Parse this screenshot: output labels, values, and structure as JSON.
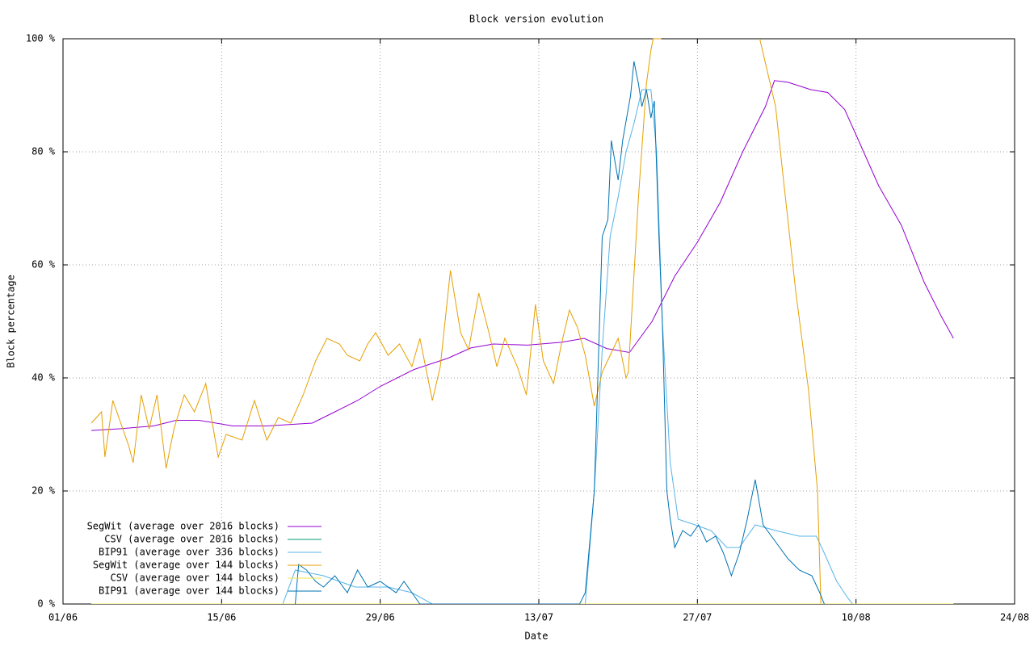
{
  "chart_data": {
    "type": "line",
    "title": "Block version evolution",
    "x_label": "Date",
    "y_label": "Block percentage",
    "xlim": [
      0,
      84
    ],
    "xticks": [
      {
        "value": 0,
        "label": "01/06"
      },
      {
        "value": 14,
        "label": "15/06"
      },
      {
        "value": 28,
        "label": "29/06"
      },
      {
        "value": 42,
        "label": "13/07"
      },
      {
        "value": 56,
        "label": "27/07"
      },
      {
        "value": 70,
        "label": "10/08"
      },
      {
        "value": 84,
        "label": "24/08"
      }
    ],
    "ylim": [
      0,
      100
    ],
    "yticks": [
      {
        "value": 0,
        "label": "0 %"
      },
      {
        "value": 20,
        "label": "20 %"
      },
      {
        "value": 40,
        "label": "40 %"
      },
      {
        "value": 60,
        "label": "60 %"
      },
      {
        "value": 80,
        "label": "80 %"
      },
      {
        "value": 100,
        "label": "100 %"
      }
    ],
    "grid": true,
    "legend": "lower left",
    "series": [
      {
        "name": "SegWit (average over 2016 blocks)",
        "color": "#9400d3",
        "x": [
          2.5,
          5,
          8,
          10,
          12,
          15,
          18,
          22,
          24,
          26,
          28,
          31,
          34,
          36,
          38,
          41,
          44,
          46,
          48,
          50,
          52,
          54,
          56,
          58,
          60,
          62,
          62.8,
          64,
          66,
          67.5,
          69,
          70,
          72,
          74,
          76,
          77.5,
          78.6
        ],
        "values": [
          30.7,
          31,
          31.5,
          32.5,
          32.5,
          31.5,
          31.5,
          32,
          34,
          36,
          38.5,
          41.5,
          43.5,
          45.3,
          46,
          45.8,
          46.3,
          47,
          45.2,
          44.5,
          50,
          58,
          64,
          71,
          80,
          88,
          92.6,
          92.3,
          91,
          90.5,
          87.5,
          83,
          74,
          67,
          57,
          51,
          47
        ]
      },
      {
        "name": "CSV (average over 2016 blocks)",
        "color": "#009e73",
        "x": [
          2.5,
          78.6
        ],
        "values": [
          0,
          0
        ]
      },
      {
        "name": "BIP91 (average over 336 blocks)",
        "color": "#56b4e9",
        "x": [
          19.4,
          20.5,
          23,
          25.8,
          28.7,
          30.8,
          32.6,
          46.1,
          46.9,
          47.6,
          48.3,
          49,
          49.7,
          50.4,
          51.1,
          51.9,
          52.4,
          52.9,
          53.6,
          54.3,
          55.8,
          57.2,
          58.6,
          59.7,
          61.1,
          62.9,
          65,
          66.5,
          67.2,
          68.3,
          69.3,
          69.7
        ],
        "values": [
          0,
          6,
          5,
          3,
          3,
          2,
          0,
          0,
          20,
          45,
          65,
          72,
          80,
          85,
          91,
          91,
          80,
          50,
          25,
          15,
          14,
          13,
          10,
          10,
          14,
          13,
          12,
          12,
          9,
          4,
          1,
          0
        ]
      },
      {
        "name": "SegWit (average over 144 blocks)",
        "color": "#e69f00",
        "x": [
          2.5,
          3.4,
          3.7,
          4.4,
          5.1,
          5.8,
          6.2,
          6.9,
          7.6,
          8.3,
          9.1,
          9.8,
          10.7,
          11.6,
          12.6,
          13.1,
          13.7,
          14.4,
          15.8,
          16.9,
          18,
          19,
          20.1,
          21.2,
          22.3,
          23.3,
          24.4,
          25.1,
          26.2,
          26.9,
          27.6,
          28.7,
          29.7,
          30.8,
          31.5,
          32.6,
          33.3,
          34.2,
          35.1,
          35.8,
          36.7,
          37.6,
          38.3,
          39,
          40.1,
          40.9,
          41.7,
          42.4,
          43.3,
          44,
          44.7,
          45.4,
          46.1,
          46.9,
          47.6,
          48.3,
          49,
          49.7,
          49.9,
          50.8,
          51.5,
          51.9,
          52.1,
          52.8,
          53,
          61.5,
          62.9,
          63.6,
          64.7,
          65.8,
          66.6,
          66.9,
          67.7
        ],
        "values": [
          32,
          34,
          26,
          36,
          32,
          28,
          25,
          37,
          31,
          37,
          24,
          31,
          37,
          34,
          39,
          33,
          26,
          30,
          29,
          36,
          29,
          33,
          32,
          37,
          43,
          47,
          46,
          44,
          43,
          46,
          48,
          44,
          46,
          42,
          47,
          36,
          42,
          59,
          48,
          45,
          55,
          48,
          42,
          47,
          42,
          37,
          53,
          43,
          39,
          46,
          52,
          49,
          44,
          35,
          41,
          44,
          47,
          40,
          41,
          72,
          92,
          98,
          100,
          100,
          null,
          100,
          88,
          75,
          55,
          38,
          20,
          0,
          0
        ]
      },
      {
        "name": "CSV (average over 144 blocks)",
        "color": "#f0e442",
        "x": [
          2.5,
          78.6
        ],
        "values": [
          0,
          0
        ]
      },
      {
        "name": "BIP91 (average over 144 blocks)",
        "color": "#0072b2",
        "x": [
          20.5,
          20.8,
          21.5,
          22.3,
          23,
          24,
          25.1,
          26,
          26.9,
          28,
          29.4,
          30.1,
          30.8,
          31.5,
          45.6,
          46.1,
          46.9,
          47.6,
          48.1,
          48.4,
          49,
          49.4,
          50.1,
          50.4,
          50.8,
          51.1,
          51.5,
          51.9,
          52.2,
          52.6,
          52.9,
          53.3,
          53.6,
          54,
          54.7,
          55.4,
          56.1,
          56.8,
          57.6,
          58.3,
          59,
          59.7,
          60.4,
          61.1,
          61.8,
          62.9,
          64,
          65,
          66.1,
          66.8,
          67.2
        ],
        "values": [
          0,
          7,
          6,
          4,
          3,
          5,
          2,
          6,
          3,
          4,
          2,
          4,
          2,
          0,
          0,
          2,
          20,
          65,
          68,
          82,
          75,
          82,
          90,
          96,
          92,
          88,
          91,
          86,
          89,
          65,
          50,
          20,
          15,
          10,
          13,
          12,
          14,
          11,
          12,
          9,
          5,
          9,
          15,
          22,
          14,
          11,
          8,
          6,
          5,
          2,
          0
        ]
      }
    ]
  }
}
